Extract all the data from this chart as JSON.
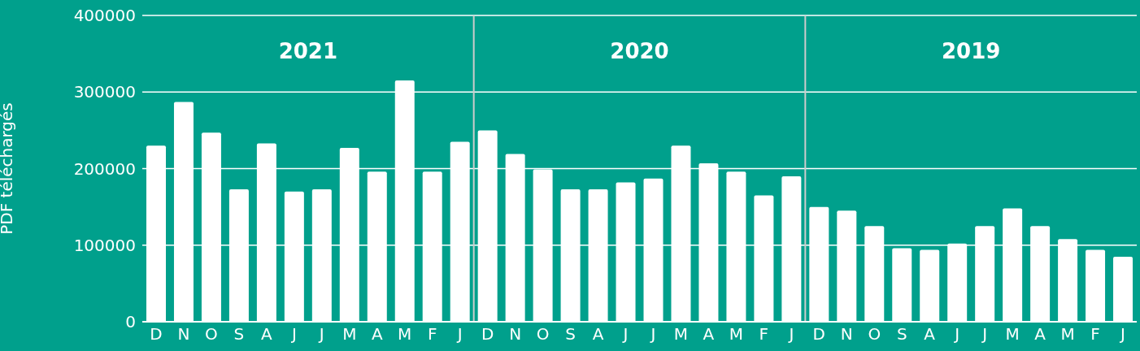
{
  "chart_data": {
    "type": "bar",
    "ylabel": "PDF téléchargés",
    "categories": [
      "D",
      "N",
      "O",
      "S",
      "A",
      "J",
      "J",
      "M",
      "A",
      "M",
      "F",
      "J",
      "D",
      "N",
      "O",
      "S",
      "A",
      "J",
      "J",
      "M",
      "A",
      "M",
      "F",
      "J",
      "D",
      "N",
      "O",
      "S",
      "A",
      "J",
      "J",
      "M",
      "A",
      "M",
      "F",
      "J"
    ],
    "values": [
      230000,
      287000,
      247000,
      173000,
      233000,
      170000,
      173000,
      227000,
      196000,
      315000,
      196000,
      235000,
      250000,
      219000,
      199000,
      173000,
      173000,
      182000,
      187000,
      230000,
      207000,
      196000,
      165000,
      190000,
      150000,
      145000,
      125000,
      96000,
      94000,
      102000,
      125000,
      148000,
      125000,
      108000,
      94000,
      85000
    ],
    "color": "#ffffff",
    "ylim": [
      0,
      400000
    ],
    "yticks": [
      0,
      100000,
      200000,
      300000,
      400000
    ],
    "grid": "y",
    "annotations": [
      "2021",
      "2020",
      "2019"
    ]
  }
}
